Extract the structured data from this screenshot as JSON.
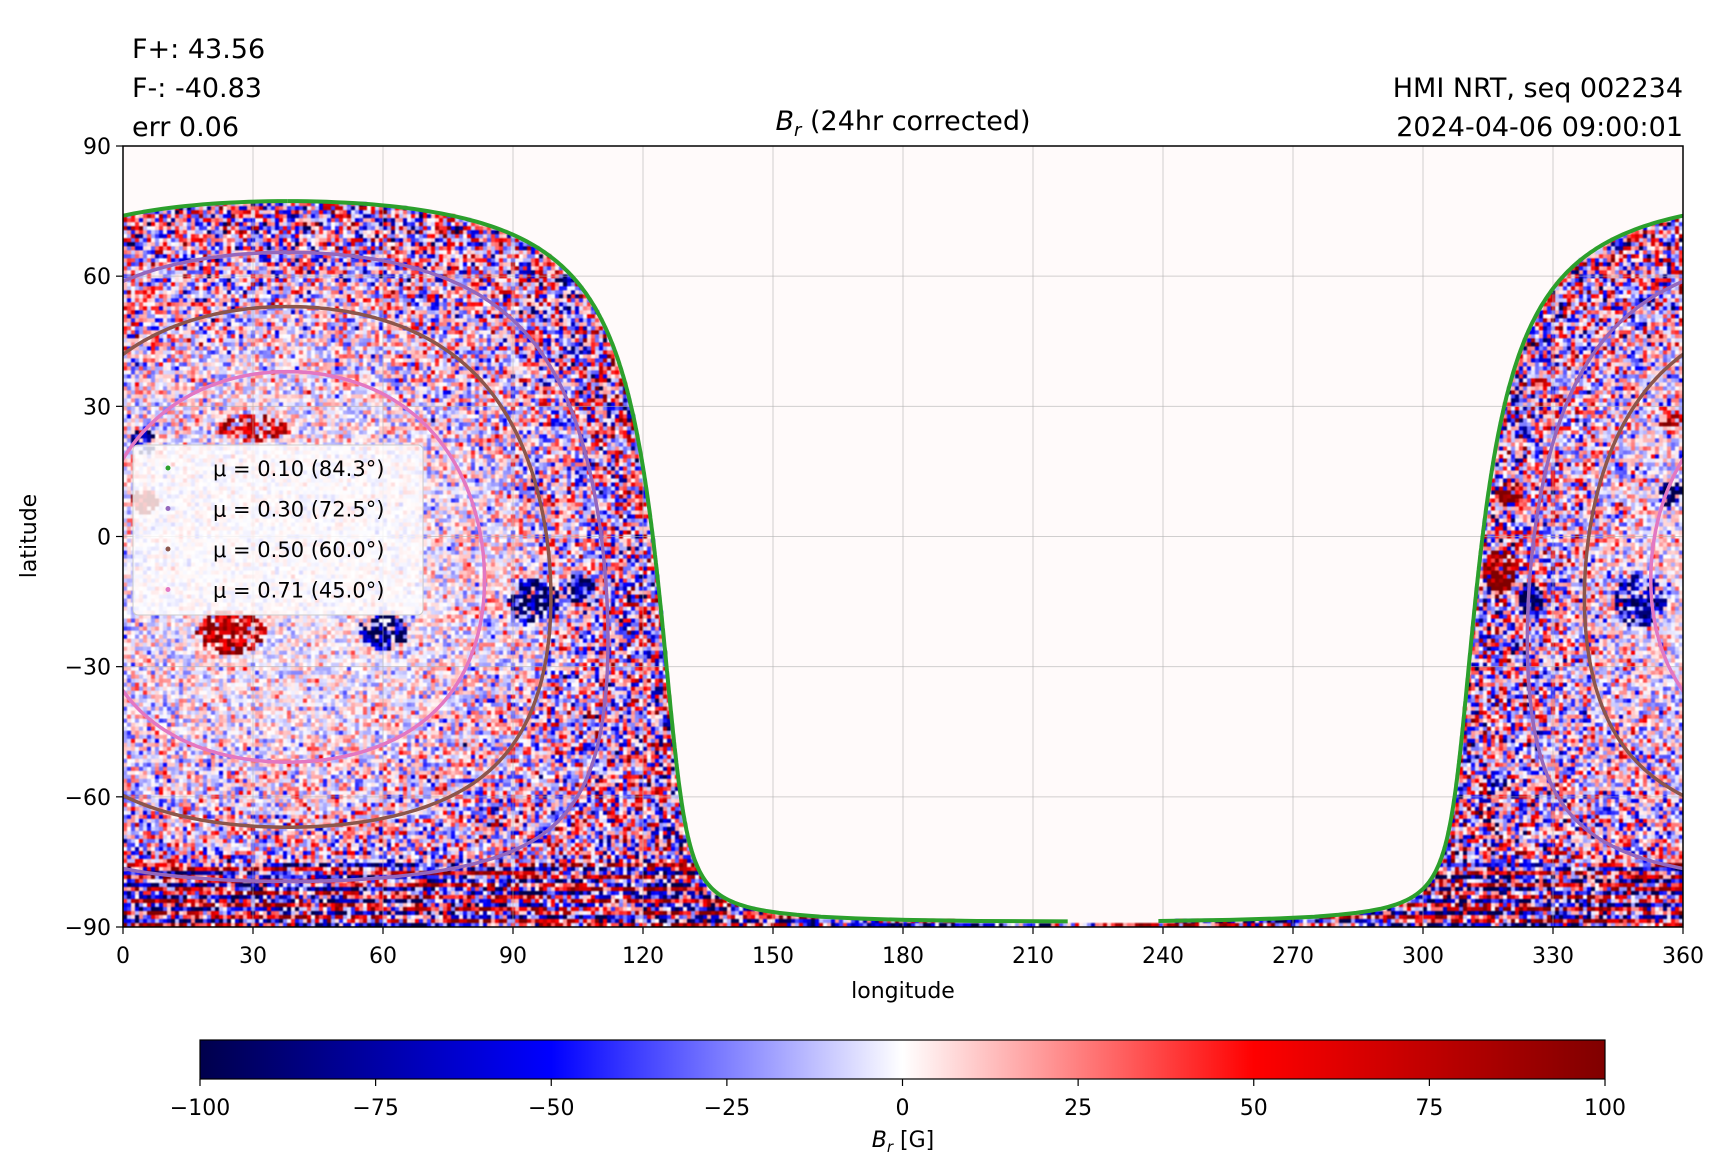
{
  "chart_data": {
    "type": "heatmap",
    "title": "B_r (24hr corrected)",
    "title_parts": {
      "symbol": "B",
      "subscript": "r",
      "rest": " (24hr corrected)"
    },
    "xlabel": "longitude",
    "ylabel": "latitude",
    "xlim": [
      0,
      360
    ],
    "ylim": [
      -90,
      90
    ],
    "xticks": [
      0,
      30,
      60,
      90,
      120,
      150,
      180,
      210,
      240,
      270,
      300,
      330,
      360
    ],
    "yticks": [
      -90,
      -60,
      -30,
      0,
      30,
      60,
      90
    ],
    "xtick_labels": [
      "0",
      "30",
      "60",
      "90",
      "120",
      "150",
      "180",
      "210",
      "240",
      "270",
      "300",
      "330",
      "360"
    ],
    "ytick_labels": [
      "−90",
      "−60",
      "−30",
      "0",
      "30",
      "60",
      "90"
    ],
    "grid": true,
    "disk_center": {
      "lon": 38,
      "lat": -7
    },
    "legend": {
      "placement": "center-left",
      "entries": [
        {
          "label": "μ = 0.10 (84.3°)",
          "mu": 0.1,
          "angle": 84.3,
          "color": "#2ca02c"
        },
        {
          "label": "μ = 0.30 (72.5°)",
          "mu": 0.3,
          "angle": 72.5,
          "color": "#9467bd"
        },
        {
          "label": "μ = 0.50 (60.0°)",
          "mu": 0.5,
          "angle": 60.0,
          "color": "#8c564b"
        },
        {
          "label": "μ = 0.71 (45.0°)",
          "mu": 0.71,
          "angle": 45.0,
          "color": "#e377c2"
        }
      ]
    },
    "annotations": {
      "flux_pos": "F+: 43.56",
      "flux_neg": "F-: -40.83",
      "err": "err 0.06",
      "source": "HMI NRT, seq 002234",
      "timestamp": "2024-04-06 09:00:01"
    },
    "colorbar": {
      "label": "B_r [G]",
      "label_parts": {
        "symbol": "B",
        "subscript": "r",
        "rest": " [G]"
      },
      "colormap": "seismic",
      "range": [
        -100,
        100
      ],
      "ticks": [
        -100,
        -75,
        -50,
        -25,
        0,
        25,
        50,
        75,
        100
      ],
      "tick_labels": [
        "−100",
        "−75",
        "−50",
        "−25",
        "0",
        "25",
        "50",
        "75",
        "100"
      ],
      "orientation": "horizontal"
    }
  }
}
